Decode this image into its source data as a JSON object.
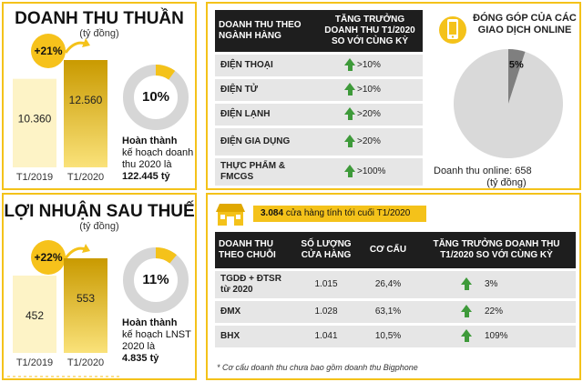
{
  "revenue": {
    "title": "DOANH THU THUẦN",
    "unit": "(tỷ đồng)",
    "growth": "+21%",
    "progress_pct": "10%",
    "progress_fraction": 0.1,
    "note": [
      "Hoàn thành",
      "kế hoạch doanh",
      "thu 2020 là",
      "122.445 tỷ"
    ]
  },
  "profit": {
    "title": "LỢI NHUẬN SAU THUẾ",
    "unit": "(tỷ đồng)",
    "growth": "+22%",
    "progress_pct": "11%",
    "progress_fraction": 0.11,
    "note": [
      "Hoàn thành",
      "kế hoạch LNST",
      "2020 là",
      "4.835 tỷ"
    ]
  },
  "chart_data": [
    {
      "type": "bar",
      "title": "DOANH THU THUẦN",
      "categories": [
        "T1/2019",
        "T1/2020"
      ],
      "values": [
        10360,
        12560
      ],
      "value_labels": [
        "10.360",
        "12.560"
      ],
      "ylim": [
        0,
        12560
      ]
    },
    {
      "type": "bar",
      "title": "LỢI NHUẬN SAU THUẾ",
      "categories": [
        "T1/2019",
        "T1/2020"
      ],
      "values": [
        452,
        553
      ],
      "value_labels": [
        "452",
        "553"
      ],
      "ylim": [
        0,
        553
      ]
    },
    {
      "type": "pie",
      "title": "ĐÓNG GÓP CỦA CÁC GIAO DỊCH ONLINE",
      "values": [
        5,
        95
      ],
      "slice_labels": [
        "5%"
      ]
    }
  ],
  "industry_table": {
    "headers": [
      "DOANH THU THEO NGÀNH HÀNG",
      "TĂNG TRƯỞNG DOANH THU T1/2020 SO VỚI CÙNG KỲ"
    ],
    "rows": [
      {
        "label": "ĐIỆN THOẠI",
        "growth": ">10%"
      },
      {
        "label": "ĐIỆN TỬ",
        "growth": ">10%"
      },
      {
        "label": "ĐIỆN LẠNH",
        "growth": ">20%"
      },
      {
        "label": "ĐIỆN GIA DỤNG",
        "growth": ">20%"
      },
      {
        "label": "THỰC PHẨM & FMCGS",
        "growth": ">100%"
      }
    ]
  },
  "online": {
    "title_line1": "ĐÓNG GÓP CỦA CÁC",
    "title_line2": "GIAO DỊCH ONLINE",
    "pie_label": "5%",
    "caption_line1": "Doanh thu online: 658",
    "caption_line2": "(tỷ đồng)"
  },
  "stores": {
    "count": "3.084",
    "text": "cửa hàng tính tới cuối T1/2020"
  },
  "chain_table": {
    "headers": [
      "DOANH THU THEO CHUỖI",
      "SỐ LƯỢNG CỬA HÀNG",
      "CƠ CẤU",
      "TĂNG TRƯỞNG DOANH THU T1/2020 SO VỚI CÙNG KỲ"
    ],
    "rows": [
      {
        "label": "TGDĐ + ĐTSR từ 2020",
        "stores": "1.015",
        "share": "26,4%",
        "growth": "3%"
      },
      {
        "label": "ĐMX",
        "stores": "1.028",
        "share": "63,1%",
        "growth": "22%"
      },
      {
        "label": "BHX",
        "stores": "1.041",
        "share": "10,5%",
        "growth": "109%"
      }
    ],
    "footnote": "* Cơ cấu doanh thu chưa bao gồm doanh thu Bigphone"
  },
  "colors": {
    "accent": "#f4c21a",
    "bar_2019": "#fdf3c6",
    "bar_2020": "#e9b40c",
    "donut_track": "#d6d6d6",
    "pie_main": "#d9d9d9",
    "pie_slice": "#7f7f7f",
    "growth_arrow": "#3e9a3a"
  }
}
